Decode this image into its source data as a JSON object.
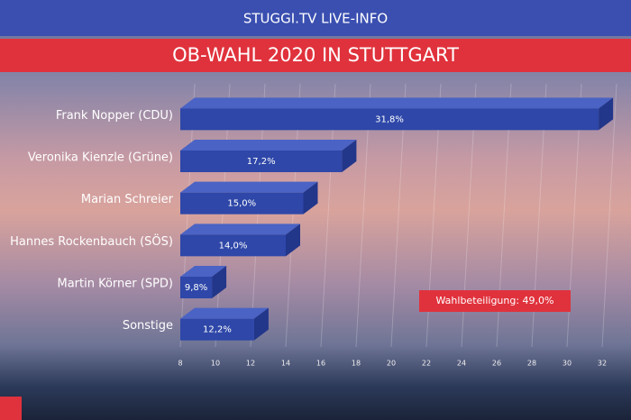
{
  "chart_data": {
    "type": "bar",
    "orientation": "horizontal",
    "header": "STUGGI.TV LIVE-INFO",
    "title": "OB-WAHL 2020 IN STUTTGART",
    "categories": [
      "Frank Nopper (CDU)",
      "Veronika Kienzle (Grüne)",
      "Marian Schreier",
      "Hannes Rockenbauch (SÖS)",
      "Martin Körner (SPD)",
      "Sonstige"
    ],
    "values": [
      31.8,
      17.2,
      15.0,
      14.0,
      9.8,
      12.2
    ],
    "value_labels": [
      "31,8%",
      "17,2%",
      "15,0%",
      "14,0%",
      "9,8%",
      "12,2%"
    ],
    "color": "#2e47a8",
    "xlim": [
      8,
      32
    ],
    "xticks": [
      8,
      10,
      12,
      14,
      16,
      18,
      20,
      22,
      24,
      26,
      28,
      30,
      32
    ],
    "grid": true,
    "annotation": "Wahlbeteiligung: 49,0%"
  }
}
